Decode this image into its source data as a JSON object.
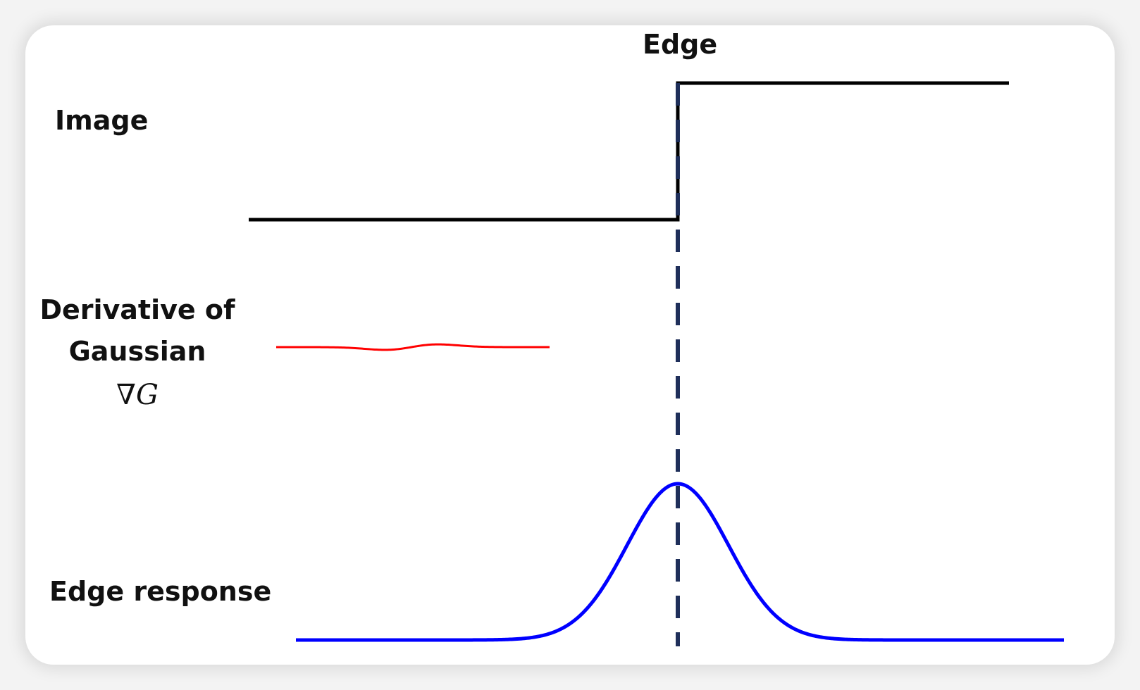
{
  "labels": {
    "edge": "Edge",
    "image": "Image",
    "derivative_line1": "Derivative of",
    "derivative_line2": "Gaussian",
    "gradient_symbol": "∇G",
    "edge_response": "Edge response"
  },
  "colors": {
    "image_signal": "#000000",
    "derivative_gaussian": "#ff0000",
    "edge_response": "#0000ff",
    "edge_marker": "#1f2f5a",
    "text": "#111111"
  }
}
